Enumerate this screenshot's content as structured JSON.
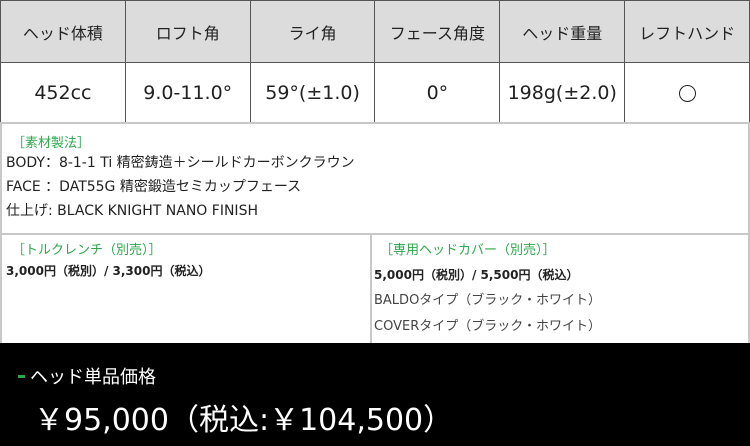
{
  "specs": {
    "headers": [
      "ヘッド体積",
      "ロフト角",
      "ライ角",
      "フェース角度",
      "ヘッド重量",
      "レフトハンド"
    ],
    "values": [
      "452cc",
      "9.0-11.0°",
      "59°(±1.0)",
      "0°",
      "198g(±2.0)",
      ""
    ],
    "left_hand_icon": "circle-icon"
  },
  "material": {
    "title": "［素材製法］",
    "lines": [
      "BODY：8-1-1 Ti 精密鋳造＋シールドカーボンクラウン",
      "FACE ：DAT55G 精密鍛造セミカップフェース",
      "仕上げ: BLACK KNIGHT NANO FINISH"
    ]
  },
  "torque": {
    "title": "［トルクレンチ（別売）］",
    "price": "3,000円（税別）/ 3,300円（税込）"
  },
  "cover": {
    "title": "［専用ヘッドカバー（別売）］",
    "price": "5,000円（税別）/ 5,500円（税込）",
    "types": [
      "BALDOタイプ（ブラック・ホワイト）",
      "COVERタイプ（ブラック・ホワイト）"
    ]
  },
  "price": {
    "label": "ヘッド単品価格",
    "value": "￥95,000（税込:￥104,500）"
  },
  "colors": {
    "accent": "#2aa84a",
    "header_bg": "#dcdcdc",
    "price_bg": "#000000"
  }
}
